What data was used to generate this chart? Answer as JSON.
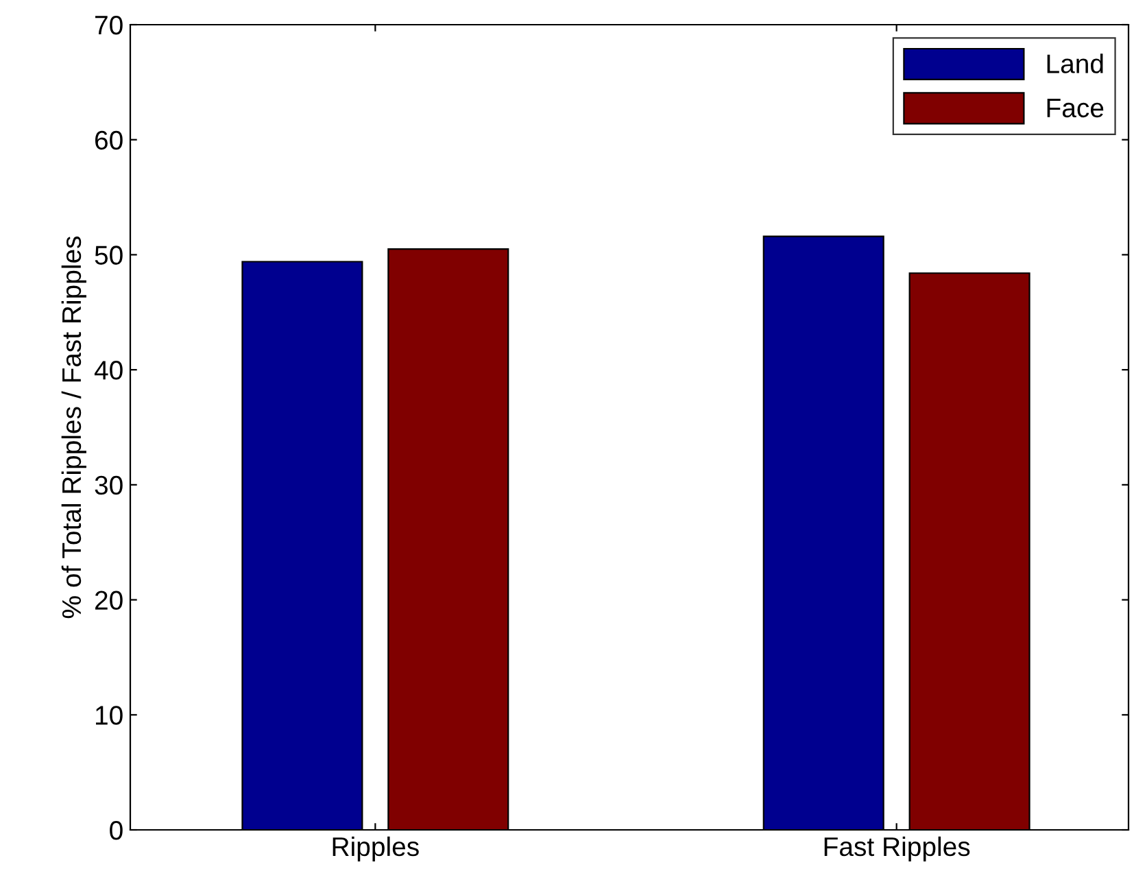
{
  "chart_data": {
    "type": "bar",
    "ylabel": "% of Total Ripples / Fast Ripples",
    "categories": [
      "Ripples",
      "Fast Ripples"
    ],
    "series": [
      {
        "name": "Land",
        "color": "#00008f",
        "values": [
          49.4,
          51.6
        ]
      },
      {
        "name": "Face",
        "color": "#800000",
        "values": [
          50.5,
          48.4
        ]
      }
    ],
    "ylim": [
      0,
      70
    ],
    "yticks": [
      0,
      10,
      20,
      30,
      40,
      50,
      60,
      70
    ],
    "grid": false,
    "legend": "top right"
  }
}
